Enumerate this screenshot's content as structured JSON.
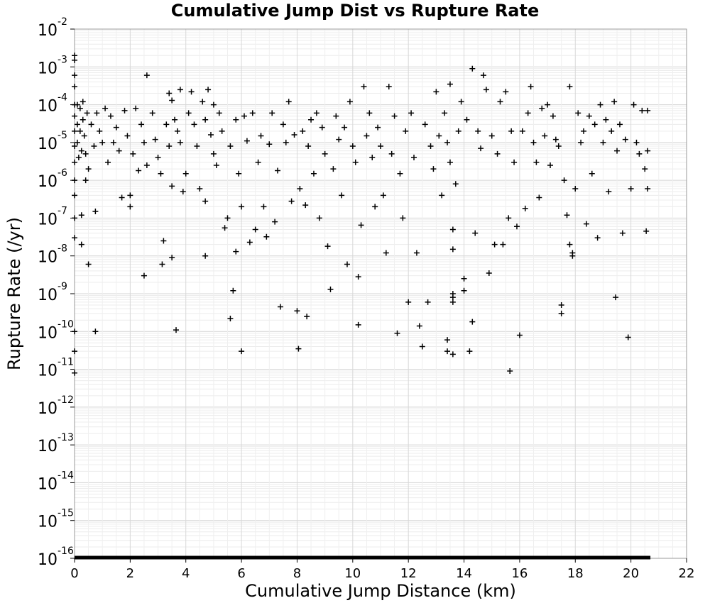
{
  "chart_data": {
    "type": "scatter",
    "title": "Cumulative Jump Dist vs Rupture Rate",
    "xlabel": "Cumulative Jump Distance (km)",
    "ylabel": "Rupture Rate (/yr)",
    "xlim": [
      0,
      22
    ],
    "ylim": [
      1e-16,
      0.01
    ],
    "yscale": "log",
    "grid": true,
    "legend": "none",
    "marker": "plus",
    "marker_color": "#000000",
    "x_ticks": [
      "0",
      "2",
      "4",
      "6",
      "8",
      "10",
      "12",
      "14",
      "16",
      "18",
      "20",
      "22"
    ],
    "y_ticks": [
      {
        "base": "10",
        "exp": "-2"
      },
      {
        "base": "10",
        "exp": "-3"
      },
      {
        "base": "10",
        "exp": "-4"
      },
      {
        "base": "10",
        "exp": "-5"
      },
      {
        "base": "10",
        "exp": "-6"
      },
      {
        "base": "10",
        "exp": "-7"
      },
      {
        "base": "10",
        "exp": "-8"
      },
      {
        "base": "10",
        "exp": "-9"
      },
      {
        "base": "10",
        "exp": "-10"
      },
      {
        "base": "10",
        "exp": "-11"
      },
      {
        "base": "10",
        "exp": "-12"
      },
      {
        "base": "10",
        "exp": "-13"
      },
      {
        "base": "10",
        "exp": "-14"
      },
      {
        "base": "10",
        "exp": "-15"
      },
      {
        "base": "10",
        "exp": "-16"
      }
    ],
    "points": [
      [
        0,
        0.002
      ],
      [
        0,
        0.0015
      ],
      [
        0,
        0.0006
      ],
      [
        0,
        0.0003
      ],
      [
        0,
        0.0001
      ],
      [
        0,
        5e-05
      ],
      [
        0,
        2e-05
      ],
      [
        0,
        8e-06
      ],
      [
        0,
        3e-06
      ],
      [
        0,
        1e-06
      ],
      [
        0,
        4e-07
      ],
      [
        0,
        1e-07
      ],
      [
        0,
        3e-08
      ],
      [
        0,
        1e-10
      ],
      [
        0,
        3e-11
      ],
      [
        0,
        8e-12
      ],
      [
        0.1,
        0.0001
      ],
      [
        0.1,
        3e-05
      ],
      [
        0.1,
        1e-05
      ],
      [
        0.15,
        4e-06
      ],
      [
        0.2,
        8e-05
      ],
      [
        0.2,
        2e-05
      ],
      [
        0.25,
        6e-06
      ],
      [
        0.3,
        0.00012
      ],
      [
        0.3,
        4e-05
      ],
      [
        0.35,
        1.5e-05
      ],
      [
        0.4,
        5e-06
      ],
      [
        0.4,
        1e-06
      ],
      [
        0.45,
        6e-05
      ],
      [
        0.5,
        2e-06
      ],
      [
        0.5,
        6e-09
      ],
      [
        0.25,
        2e-08
      ],
      [
        0.25,
        1.2e-07
      ],
      [
        0.75,
        1.5e-07
      ],
      [
        0.75,
        1e-10
      ],
      [
        0.6,
        3e-05
      ],
      [
        0.7,
        8e-06
      ],
      [
        0.8,
        6e-05
      ],
      [
        0.9,
        2e-05
      ],
      [
        1.0,
        1e-05
      ],
      [
        1.1,
        8e-05
      ],
      [
        1.2,
        3e-06
      ],
      [
        1.3,
        5e-05
      ],
      [
        1.4,
        1e-05
      ],
      [
        1.5,
        2.5e-05
      ],
      [
        1.6,
        6e-06
      ],
      [
        1.7,
        3.5e-07
      ],
      [
        1.8,
        7e-05
      ],
      [
        1.9,
        1.5e-05
      ],
      [
        2.0,
        2e-07
      ],
      [
        2.0,
        4e-07
      ],
      [
        2.1,
        5e-06
      ],
      [
        2.2,
        8e-05
      ],
      [
        2.3,
        1.8e-06
      ],
      [
        2.4,
        3e-05
      ],
      [
        2.5,
        1e-05
      ],
      [
        2.6,
        0.0006
      ],
      [
        2.6,
        2.5e-06
      ],
      [
        2.5,
        3e-09
      ],
      [
        2.8,
        6e-05
      ],
      [
        2.9,
        1.2e-05
      ],
      [
        3.0,
        4e-06
      ],
      [
        3.1,
        1.5e-06
      ],
      [
        3.15,
        6e-09
      ],
      [
        3.2,
        2.5e-08
      ],
      [
        3.3,
        3e-05
      ],
      [
        3.4,
        0.0002
      ],
      [
        3.4,
        8e-06
      ],
      [
        3.5,
        0.00013
      ],
      [
        3.5,
        7e-07
      ],
      [
        3.5,
        9e-09
      ],
      [
        3.6,
        4e-05
      ],
      [
        3.65,
        1.1e-10
      ],
      [
        3.7,
        2e-05
      ],
      [
        3.8,
        0.00025
      ],
      [
        3.8,
        1e-05
      ],
      [
        3.9,
        5e-07
      ],
      [
        4.0,
        1.5e-06
      ],
      [
        4.1,
        6e-05
      ],
      [
        4.2,
        0.00022
      ],
      [
        4.3,
        3e-05
      ],
      [
        4.4,
        8e-06
      ],
      [
        4.5,
        6e-07
      ],
      [
        4.6,
        0.00012
      ],
      [
        4.7,
        4e-05
      ],
      [
        4.7,
        2.8e-07
      ],
      [
        4.7,
        1e-08
      ],
      [
        4.8,
        0.00025
      ],
      [
        4.9,
        1.6e-05
      ],
      [
        5.0,
        5e-06
      ],
      [
        5.0,
        0.0001
      ],
      [
        5.1,
        2.5e-06
      ],
      [
        5.2,
        6e-05
      ],
      [
        5.3,
        2e-05
      ],
      [
        5.4,
        5.5e-08
      ],
      [
        5.5,
        1e-07
      ],
      [
        5.6,
        8e-06
      ],
      [
        5.6,
        2.2e-10
      ],
      [
        5.7,
        1.2e-09
      ],
      [
        5.8,
        4e-05
      ],
      [
        5.8,
        1.3e-08
      ],
      [
        5.9,
        1.5e-06
      ],
      [
        6.0,
        3e-11
      ],
      [
        6.0,
        2e-07
      ],
      [
        6.1,
        5e-05
      ],
      [
        6.2,
        1.1e-05
      ],
      [
        6.3,
        2.3e-08
      ],
      [
        6.4,
        6e-05
      ],
      [
        6.5,
        5e-08
      ],
      [
        6.6,
        3e-06
      ],
      [
        6.7,
        1.5e-05
      ],
      [
        6.8,
        2e-07
      ],
      [
        6.9,
        3.2e-08
      ],
      [
        7.0,
        9e-06
      ],
      [
        7.1,
        6e-05
      ],
      [
        7.2,
        8e-08
      ],
      [
        7.3,
        1.8e-06
      ],
      [
        7.4,
        4.5e-10
      ],
      [
        7.5,
        3e-05
      ],
      [
        7.6,
        1e-05
      ],
      [
        7.7,
        0.00012
      ],
      [
        7.8,
        2.8e-07
      ],
      [
        7.9,
        1.6e-05
      ],
      [
        8.0,
        3.5e-10
      ],
      [
        8.05,
        3.5e-11
      ],
      [
        8.1,
        6e-07
      ],
      [
        8.2,
        2e-05
      ],
      [
        8.3,
        2.2e-07
      ],
      [
        8.35,
        2.5e-10
      ],
      [
        8.4,
        8e-06
      ],
      [
        8.5,
        4e-05
      ],
      [
        8.6,
        1.5e-06
      ],
      [
        8.7,
        6e-05
      ],
      [
        8.8,
        1e-07
      ],
      [
        8.9,
        2.5e-05
      ],
      [
        9.0,
        5e-06
      ],
      [
        9.1,
        1.8e-08
      ],
      [
        9.2,
        1.3e-09
      ],
      [
        9.3,
        2e-06
      ],
      [
        9.4,
        5e-05
      ],
      [
        9.5,
        1.2e-05
      ],
      [
        9.6,
        4e-07
      ],
      [
        9.7,
        2.5e-05
      ],
      [
        9.8,
        6e-09
      ],
      [
        9.9,
        0.00012
      ],
      [
        10.0,
        8e-06
      ],
      [
        10.1,
        3e-06
      ],
      [
        10.2,
        1.5e-10
      ],
      [
        10.2,
        2.8e-09
      ],
      [
        10.3,
        6.5e-08
      ],
      [
        10.4,
        0.0003
      ],
      [
        10.5,
        1.5e-05
      ],
      [
        10.6,
        6e-05
      ],
      [
        10.7,
        4e-06
      ],
      [
        10.8,
        2e-07
      ],
      [
        10.9,
        2.5e-05
      ],
      [
        11.0,
        8e-06
      ],
      [
        11.1,
        4e-07
      ],
      [
        11.2,
        1.2e-08
      ],
      [
        11.3,
        0.0003
      ],
      [
        11.4,
        5e-06
      ],
      [
        11.5,
        5e-05
      ],
      [
        11.6,
        9e-11
      ],
      [
        11.7,
        1.5e-06
      ],
      [
        11.8,
        1e-07
      ],
      [
        11.9,
        2e-05
      ],
      [
        12.0,
        6e-10
      ],
      [
        12.1,
        6e-05
      ],
      [
        12.2,
        4e-06
      ],
      [
        12.3,
        1.2e-08
      ],
      [
        12.4,
        1.4e-10
      ],
      [
        12.5,
        4e-11
      ],
      [
        12.6,
        3e-05
      ],
      [
        12.7,
        6e-10
      ],
      [
        12.8,
        8e-06
      ],
      [
        12.9,
        2e-06
      ],
      [
        13.0,
        0.00022
      ],
      [
        13.1,
        1.5e-05
      ],
      [
        13.2,
        4e-07
      ],
      [
        13.3,
        6e-05
      ],
      [
        13.4,
        1e-05
      ],
      [
        13.4,
        6e-11
      ],
      [
        13.4,
        3e-11
      ],
      [
        13.5,
        3e-06
      ],
      [
        13.5,
        0.00035
      ],
      [
        13.6,
        1e-09
      ],
      [
        13.6,
        8e-10
      ],
      [
        13.6,
        6e-10
      ],
      [
        13.6,
        2.5e-11
      ],
      [
        13.6,
        5e-08
      ],
      [
        13.6,
        1.5e-08
      ],
      [
        13.7,
        8e-07
      ],
      [
        13.8,
        2e-05
      ],
      [
        13.9,
        0.00012
      ],
      [
        14.0,
        2.5e-09
      ],
      [
        14.0,
        1.2e-09
      ],
      [
        14.1,
        4e-05
      ],
      [
        14.2,
        3e-11
      ],
      [
        14.3,
        1.8e-10
      ],
      [
        14.3,
        0.0009
      ],
      [
        14.4,
        4e-08
      ],
      [
        14.5,
        2e-05
      ],
      [
        14.6,
        7e-06
      ],
      [
        14.7,
        0.0006
      ],
      [
        14.8,
        0.00025
      ],
      [
        14.9,
        3.5e-09
      ],
      [
        15.0,
        1.5e-05
      ],
      [
        15.1,
        2e-08
      ],
      [
        15.2,
        5e-06
      ],
      [
        15.3,
        0.00012
      ],
      [
        15.4,
        2e-08
      ],
      [
        15.5,
        0.00022
      ],
      [
        15.6,
        1e-07
      ],
      [
        15.65,
        9e-12
      ],
      [
        15.7,
        2e-05
      ],
      [
        15.8,
        3e-06
      ],
      [
        15.9,
        6e-08
      ],
      [
        16.0,
        8e-11
      ],
      [
        16.1,
        2e-05
      ],
      [
        16.2,
        1.8e-07
      ],
      [
        16.3,
        6e-05
      ],
      [
        16.4,
        0.0003
      ],
      [
        16.5,
        1e-05
      ],
      [
        16.6,
        3e-06
      ],
      [
        16.7,
        3.5e-07
      ],
      [
        16.8,
        8e-05
      ],
      [
        16.9,
        1.5e-05
      ],
      [
        17.0,
        0.0001
      ],
      [
        17.1,
        2.5e-06
      ],
      [
        17.2,
        5e-05
      ],
      [
        17.3,
        1.2e-05
      ],
      [
        17.4,
        8e-06
      ],
      [
        17.5,
        5e-10
      ],
      [
        17.5,
        3e-10
      ],
      [
        17.6,
        1e-06
      ],
      [
        17.7,
        1.2e-07
      ],
      [
        17.8,
        0.0003
      ],
      [
        17.8,
        2e-08
      ],
      [
        17.9,
        1.2e-08
      ],
      [
        17.9,
        1e-08
      ],
      [
        18.0,
        6e-07
      ],
      [
        18.1,
        6e-05
      ],
      [
        18.2,
        1e-05
      ],
      [
        18.3,
        2e-05
      ],
      [
        18.4,
        7e-08
      ],
      [
        18.5,
        5e-05
      ],
      [
        18.6,
        1.5e-06
      ],
      [
        18.7,
        3e-05
      ],
      [
        18.8,
        3e-08
      ],
      [
        18.9,
        0.0001
      ],
      [
        19.0,
        1e-05
      ],
      [
        19.1,
        4e-05
      ],
      [
        19.2,
        5e-07
      ],
      [
        19.3,
        2e-05
      ],
      [
        19.4,
        0.00012
      ],
      [
        19.45,
        8e-10
      ],
      [
        19.5,
        6e-06
      ],
      [
        19.6,
        3e-05
      ],
      [
        19.7,
        4e-08
      ],
      [
        19.8,
        1.2e-05
      ],
      [
        19.9,
        7e-11
      ],
      [
        20.0,
        6e-07
      ],
      [
        20.1,
        0.0001
      ],
      [
        20.2,
        1e-05
      ],
      [
        20.3,
        5e-06
      ],
      [
        20.4,
        7e-05
      ],
      [
        20.5,
        2e-06
      ],
      [
        20.55,
        4.5e-08
      ],
      [
        20.6,
        7e-05
      ],
      [
        20.6,
        6e-06
      ],
      [
        20.6,
        6e-07
      ]
    ],
    "floor_line_x_extent": [
      0,
      20.7
    ]
  }
}
